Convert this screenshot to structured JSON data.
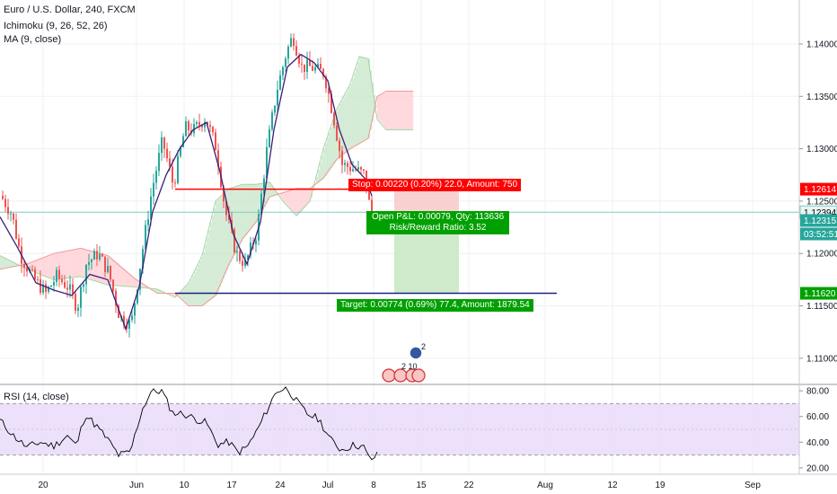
{
  "header": {
    "symbol": "Euro / U.S. Dollar, 240, FXCM",
    "indicator1": "Ichimoku (9, 26, 52, 26)",
    "indicator2": "MA (9, close)"
  },
  "rsi_pane": {
    "label": "RSI (14, close)"
  },
  "price_axis": {
    "ticks": [
      "1.14000",
      "1.13500",
      "1.13000",
      "1.12500",
      "1.12000",
      "1.11500",
      "1.11000"
    ],
    "labels": [
      {
        "text": "1.12614",
        "color": "#ff0000",
        "text_color": "#ffffff",
        "value": 1.12614
      },
      {
        "text": "1.12394",
        "color": "#e8f4f3",
        "text_color": "#000000",
        "value": 1.12394
      },
      {
        "text": "1.12315",
        "color": "#26a69a",
        "text_color": "#ffffff",
        "value": 1.12315
      },
      {
        "text": "03:52:51",
        "color": "#26a69a",
        "text_color": "#ffffff",
        "value": 1.12195
      },
      {
        "text": "1.11620",
        "color": "#00a000",
        "text_color": "#ffffff",
        "value": 1.1162
      }
    ]
  },
  "rsi_axis": {
    "ticks": [
      "80.00",
      "60.00",
      "40.00",
      "20.00"
    ]
  },
  "time_axis": {
    "ticks": [
      "20",
      "Jun",
      "10",
      "17",
      "24",
      "Jul",
      "8",
      "15",
      "22",
      "Aug",
      "12",
      "19",
      "Sep"
    ]
  },
  "position": {
    "stop_label": "Stop: 0.00220 (0.20%) 22.0, Amount: 750",
    "open_pnl": "Open P&L: 0.00079, Qty: 113636",
    "risk_reward": "Risk/Reward Ratio: 3.52",
    "target_label": "Target: 0.00774 (0.69%) 77.4, Amount: 1879.54",
    "entry": 1.12394,
    "stop": 1.12614,
    "target": 1.1162
  },
  "events": {
    "badge_top": "2",
    "badge_bottom": "2 10"
  },
  "colors": {
    "bull": "#26a69a",
    "bear": "#ef5350",
    "ma": "#3c1e78",
    "cloud_up": "#c8e6c9",
    "cloud_down": "#ffcdd2",
    "red_line": "#ff0000",
    "blue_line": "#1a237e",
    "rsi_band": "#e9d8f9",
    "rsi_line": "#000000",
    "profit_zone": "#c9e8c4",
    "loss_zone": "#f8c9c9"
  },
  "chart_data": {
    "type": "candlestick",
    "symbol": "Euro / U.S. Dollar, 240, FXCM",
    "price_range": [
      1.1075,
      1.1442
    ],
    "rsi_range": [
      15,
      85
    ],
    "price_path": [
      [
        0,
        1.1255
      ],
      [
        12,
        1.1238
      ],
      [
        22,
        1.1198
      ],
      [
        35,
        1.1178
      ],
      [
        50,
        1.1162
      ],
      [
        62,
        1.1178
      ],
      [
        75,
        1.1168
      ],
      [
        85,
        1.1148
      ],
      [
        95,
        1.119
      ],
      [
        108,
        1.12
      ],
      [
        120,
        1.1182
      ],
      [
        132,
        1.114
      ],
      [
        145,
        1.1132
      ],
      [
        158,
        1.1205
      ],
      [
        168,
        1.126
      ],
      [
        180,
        1.1308
      ],
      [
        192,
        1.1265
      ],
      [
        205,
        1.132
      ],
      [
        215,
        1.1318
      ],
      [
        228,
        1.133
      ],
      [
        240,
        1.13
      ],
      [
        250,
        1.124
      ],
      [
        262,
        1.12
      ],
      [
        272,
        1.119
      ],
      [
        285,
        1.122
      ],
      [
        296,
        1.1298
      ],
      [
        307,
        1.1355
      ],
      [
        318,
        1.1392
      ],
      [
        325,
        1.1408
      ],
      [
        335,
        1.1378
      ],
      [
        345,
        1.1378
      ],
      [
        360,
        1.1372
      ],
      [
        370,
        1.1332
      ],
      [
        380,
        1.1285
      ],
      [
        395,
        1.128
      ],
      [
        405,
        1.1275
      ],
      [
        413,
        1.1232
      ]
    ],
    "ma_path": [
      [
        0,
        1.1235
      ],
      [
        20,
        1.1205
      ],
      [
        40,
        1.1172
      ],
      [
        60,
        1.1165
      ],
      [
        80,
        1.116
      ],
      [
        100,
        1.118
      ],
      [
        120,
        1.1175
      ],
      [
        140,
        1.1128
      ],
      [
        155,
        1.1168
      ],
      [
        170,
        1.124
      ],
      [
        185,
        1.1275
      ],
      [
        200,
        1.13
      ],
      [
        215,
        1.1318
      ],
      [
        230,
        1.1325
      ],
      [
        245,
        1.1278
      ],
      [
        260,
        1.1218
      ],
      [
        275,
        1.119
      ],
      [
        290,
        1.123
      ],
      [
        305,
        1.1318
      ],
      [
        320,
        1.1378
      ],
      [
        335,
        1.139
      ],
      [
        350,
        1.1382
      ],
      [
        365,
        1.1365
      ],
      [
        378,
        1.1318
      ],
      [
        392,
        1.1285
      ],
      [
        408,
        1.127
      ],
      [
        414,
        1.1255
      ]
    ],
    "cloud": {
      "span_a": [
        [
          0,
          1.1198
        ],
        [
          30,
          1.1185
        ],
        [
          60,
          1.1175
        ],
        [
          90,
          1.1178
        ],
        [
          120,
          1.117
        ],
        [
          150,
          1.1168
        ],
        [
          175,
          1.1166
        ],
        [
          195,
          1.1158
        ],
        [
          210,
          1.1172
        ],
        [
          225,
          1.1198
        ],
        [
          240,
          1.125
        ],
        [
          255,
          1.1262
        ],
        [
          270,
          1.1266
        ],
        [
          285,
          1.1266
        ],
        [
          300,
          1.1268
        ],
        [
          315,
          1.125
        ],
        [
          330,
          1.1236
        ],
        [
          345,
          1.125
        ],
        [
          360,
          1.13
        ],
        [
          375,
          1.1338
        ],
        [
          390,
          1.1362
        ],
        [
          400,
          1.1388
        ],
        [
          410,
          1.1386
        ],
        [
          420,
          1.1328
        ],
        [
          430,
          1.1318
        ],
        [
          445,
          1.1318
        ],
        [
          460,
          1.1318
        ]
      ],
      "span_b": [
        [
          0,
          1.1185
        ],
        [
          30,
          1.119
        ],
        [
          60,
          1.12
        ],
        [
          90,
          1.1205
        ],
        [
          120,
          1.1198
        ],
        [
          150,
          1.1176
        ],
        [
          175,
          1.1162
        ],
        [
          195,
          1.1162
        ],
        [
          210,
          1.115
        ],
        [
          225,
          1.115
        ],
        [
          240,
          1.116
        ],
        [
          255,
          1.119
        ],
        [
          270,
          1.1214
        ],
        [
          285,
          1.123
        ],
        [
          300,
          1.1254
        ],
        [
          315,
          1.1258
        ],
        [
          330,
          1.1262
        ],
        [
          345,
          1.1262
        ],
        [
          360,
          1.1272
        ],
        [
          375,
          1.129
        ],
        [
          390,
          1.13
        ],
        [
          400,
          1.1305
        ],
        [
          410,
          1.131
        ],
        [
          420,
          1.135
        ],
        [
          430,
          1.1355
        ],
        [
          445,
          1.1355
        ],
        [
          460,
          1.1355
        ]
      ]
    },
    "red_line": {
      "value": 1.12614,
      "x_range": [
        195,
        568
      ]
    },
    "blue_line": {
      "value": 1.1162,
      "x_range": [
        195,
        620
      ]
    },
    "rsi_path": [
      [
        0,
        57
      ],
      [
        15,
        45
      ],
      [
        30,
        36
      ],
      [
        45,
        40
      ],
      [
        60,
        37
      ],
      [
        75,
        45
      ],
      [
        85,
        37
      ],
      [
        95,
        62
      ],
      [
        108,
        52
      ],
      [
        120,
        42
      ],
      [
        132,
        30
      ],
      [
        145,
        32
      ],
      [
        158,
        65
      ],
      [
        168,
        79
      ],
      [
        180,
        80
      ],
      [
        192,
        63
      ],
      [
        205,
        62
      ],
      [
        218,
        58
      ],
      [
        230,
        55
      ],
      [
        242,
        38
      ],
      [
        255,
        40
      ],
      [
        265,
        32
      ],
      [
        275,
        36
      ],
      [
        287,
        50
      ],
      [
        298,
        66
      ],
      [
        308,
        80
      ],
      [
        320,
        82
      ],
      [
        330,
        72
      ],
      [
        342,
        62
      ],
      [
        355,
        58
      ],
      [
        368,
        42
      ],
      [
        380,
        34
      ],
      [
        395,
        38
      ],
      [
        405,
        36
      ],
      [
        412,
        26
      ],
      [
        420,
        30
      ]
    ]
  }
}
